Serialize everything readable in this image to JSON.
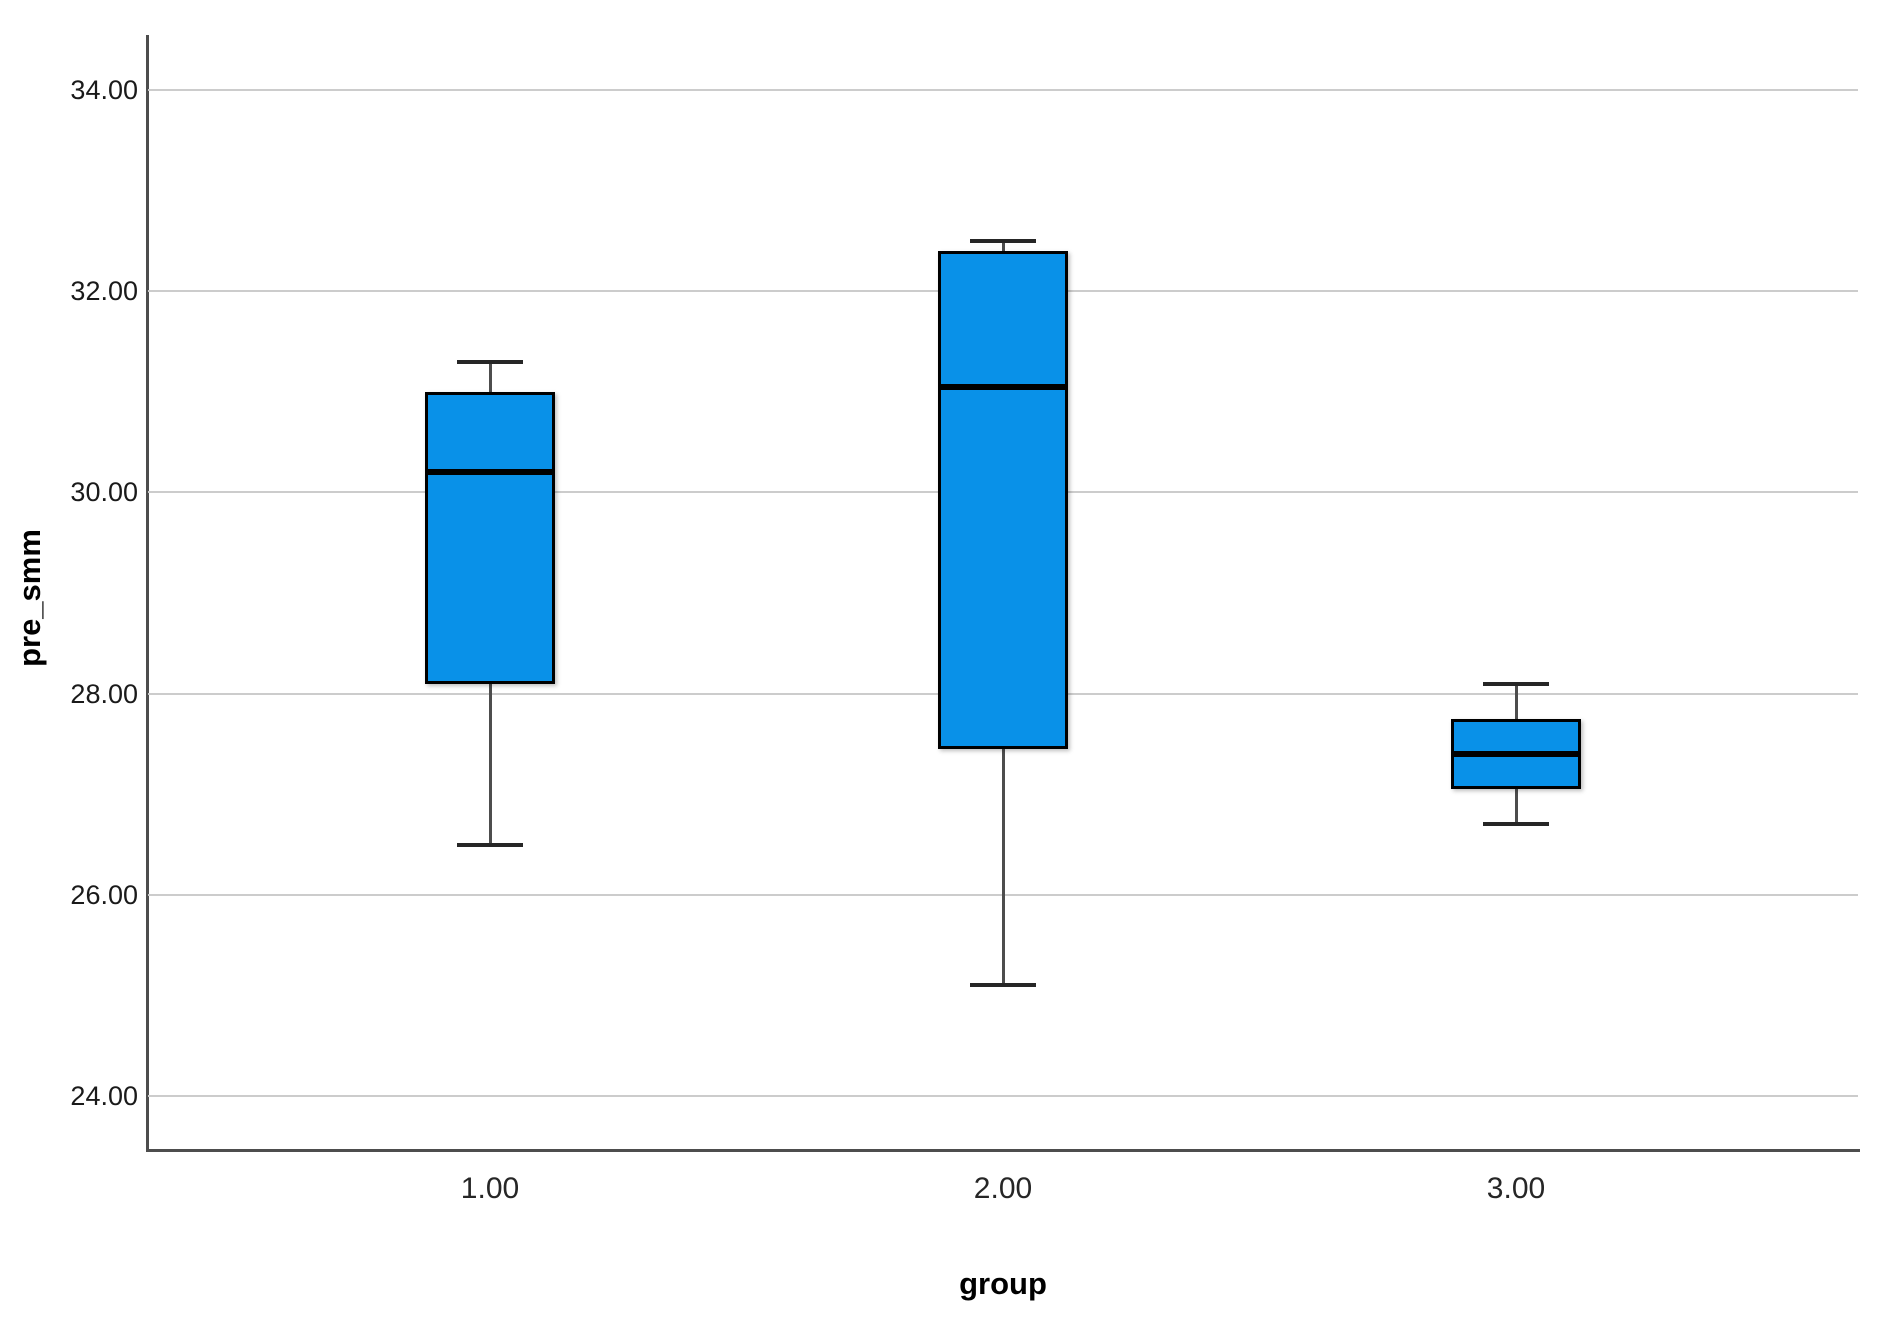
{
  "figure": {
    "background": "#ffffff",
    "ylabel": "pre_smm",
    "xlabel": "group"
  },
  "chart_data": {
    "type": "box",
    "title": "",
    "xlabel": "group",
    "ylabel": "pre_smm",
    "categories": [
      "1.00",
      "2.00",
      "3.00"
    ],
    "y_tick_values": [
      34,
      32,
      30,
      28,
      26,
      24
    ],
    "y_tick_labels": [
      "34.00",
      "32.00",
      "30.00",
      "28.00",
      "26.00",
      "24.00"
    ],
    "ylim": [
      23.45,
      34.55
    ],
    "grid": "horizontal-only",
    "legend": "none",
    "series": [
      {
        "category": "1.00",
        "min": 26.5,
        "q1": 28.1,
        "median": 30.2,
        "q3": 31.0,
        "max": 31.3
      },
      {
        "category": "2.00",
        "min": 25.1,
        "q1": 27.45,
        "median": 31.05,
        "q3": 32.4,
        "max": 32.5
      },
      {
        "category": "3.00",
        "min": 26.7,
        "q1": 27.05,
        "median": 27.4,
        "q3": 27.75,
        "max": 28.1
      }
    ],
    "colors": {
      "box_fill": "#0991e8",
      "box_border": "#000000",
      "median": "#000000",
      "whisker_stem": "#4d4d4d",
      "whisker_cap": "#262626",
      "gridline": "#cccccc",
      "axis": "#4d4d4d",
      "tick_text": "#1a1a1a"
    }
  }
}
